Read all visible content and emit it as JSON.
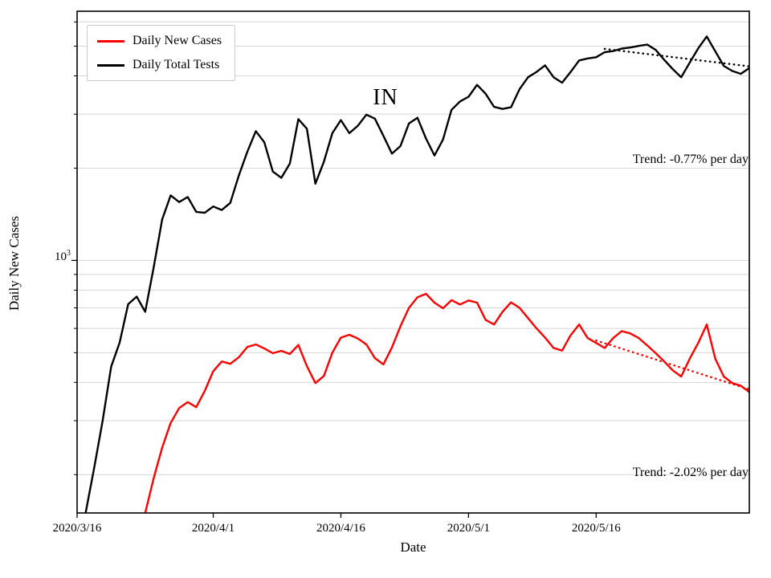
{
  "chart_data": {
    "type": "line",
    "annotation": "IN",
    "xlabel": "Date",
    "ylabel": "Daily New Cases",
    "yscale": "log",
    "ylim": [
      150,
      6500
    ],
    "x_total_days": 79,
    "x_start_label": "2020/3/16",
    "x_ticks": [
      {
        "day": 0,
        "label": "2020/3/16"
      },
      {
        "day": 16,
        "label": "2020/4/1"
      },
      {
        "day": 31,
        "label": "2020/4/16"
      },
      {
        "day": 46,
        "label": "2020/5/1"
      },
      {
        "day": 61,
        "label": "2020/5/16"
      }
    ],
    "y_tick": {
      "mantissa": "10",
      "exponent": "3",
      "value": 1000
    },
    "grid_values": [
      200,
      300,
      400,
      500,
      600,
      700,
      800,
      900,
      1000,
      2000,
      3000,
      4000,
      5000,
      6000
    ],
    "grid_color": "#d6d6d6",
    "series": [
      {
        "name": "Daily New Cases",
        "color": "#ff0000",
        "start_day": 8,
        "values": [
          150,
          195,
          245,
          295,
          330,
          345,
          332,
          375,
          435,
          468,
          460,
          483,
          522,
          532,
          516,
          498,
          507,
          495,
          530,
          452,
          398,
          420,
          500,
          560,
          572,
          556,
          532,
          480,
          458,
          520,
          610,
          700,
          758,
          778,
          728,
          698,
          742,
          718,
          740,
          728,
          640,
          618,
          680,
          730,
          700,
          648,
          600,
          560,
          518,
          508,
          570,
          618,
          558,
          538,
          518,
          558,
          588,
          578,
          558,
          528,
          498,
          468,
          438,
          418,
          478,
          538,
          618,
          478,
          418,
          398,
          390,
          372
        ]
      },
      {
        "name": "Daily Total Tests",
        "color": "#000000",
        "start_day": 1,
        "values": [
          150,
          210,
          300,
          450,
          540,
          720,
          762,
          680,
          950,
          1360,
          1630,
          1550,
          1610,
          1440,
          1430,
          1500,
          1460,
          1540,
          1890,
          2260,
          2640,
          2430,
          1950,
          1860,
          2070,
          2890,
          2690,
          1780,
          2100,
          2600,
          2870,
          2600,
          2750,
          2990,
          2900,
          2550,
          2230,
          2360,
          2800,
          2920,
          2500,
          2200,
          2480,
          3100,
          3300,
          3420,
          3740,
          3500,
          3170,
          3120,
          3160,
          3620,
          3960,
          4120,
          4330,
          3960,
          3800,
          4120,
          4490,
          4560,
          4600,
          4780,
          4820,
          4910,
          4950,
          5010,
          5060,
          4860,
          4510,
          4210,
          3960,
          4420,
          4920,
          5380,
          4810,
          4310,
          4150,
          4060,
          4240
        ]
      }
    ],
    "trends": [
      {
        "series": "Daily Total Tests",
        "label": "Trend: -0.77% per day",
        "rate_pct_per_day": -0.77,
        "start_day": 62,
        "start_value": 4900,
        "end_day": 79,
        "color": "#000000"
      },
      {
        "series": "Daily New Cases",
        "label": "Trend: -2.02% per day",
        "rate_pct_per_day": -2.02,
        "start_day": 61,
        "start_value": 548,
        "end_day": 79,
        "color": "#ff0000"
      }
    ],
    "legend_position": "upper left",
    "grid": true
  }
}
